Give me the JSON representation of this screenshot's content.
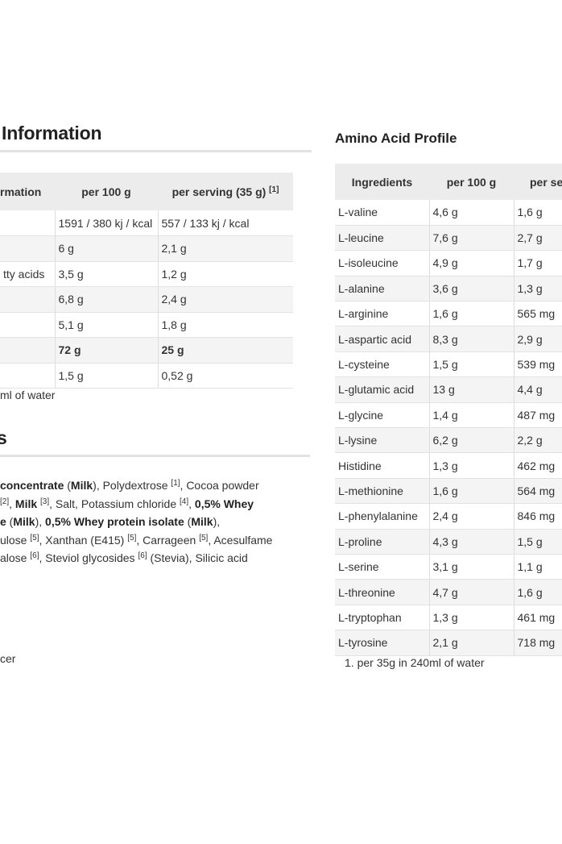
{
  "nutrition": {
    "title": "Information",
    "headers": [
      "rmation",
      "per 100 g",
      "per serving (35 g)"
    ],
    "header_sup": "[1]",
    "rows": [
      {
        "label": "",
        "per100": "1591 / 380 kj / kcal",
        "serving": "557 / 133 kj / kcal",
        "bold": false
      },
      {
        "label": "",
        "per100": "6 g",
        "serving": "2,1 g",
        "bold": false
      },
      {
        "label": "tty acids",
        "per100": "3,5 g",
        "serving": "1,2 g",
        "bold": false
      },
      {
        "label": "",
        "per100": "6,8 g",
        "serving": "2,4 g",
        "bold": false
      },
      {
        "label": "",
        "per100": "5,1 g",
        "serving": "1,8 g",
        "bold": false
      },
      {
        "label": "",
        "per100": "72 g",
        "serving": "25 g",
        "bold": true
      },
      {
        "label": "",
        "per100": "1,5 g",
        "serving": "0,52 g",
        "bold": false
      }
    ],
    "footnote": "ml of water"
  },
  "ingredients": {
    "title": "s",
    "lines": [
      [
        {
          "t": "concentrate",
          "b": true
        },
        {
          "t": " ("
        },
        {
          "t": "Milk",
          "b": true
        },
        {
          "t": "), Polydextrose "
        },
        {
          "t": "[1]",
          "s": true
        },
        {
          "t": ", Cocoa powder"
        }
      ],
      [
        {
          "t": "[2]",
          "s": true
        },
        {
          "t": ", "
        },
        {
          "t": "Milk",
          "b": true
        },
        {
          "t": " "
        },
        {
          "t": "[3]",
          "s": true
        },
        {
          "t": ", Salt, Potassium chloride "
        },
        {
          "t": "[4]",
          "s": true
        },
        {
          "t": ", "
        },
        {
          "t": "0,5% Whey",
          "b": true
        }
      ],
      [
        {
          "t": "e",
          "b": true
        },
        {
          "t": " ("
        },
        {
          "t": "Milk",
          "b": true
        },
        {
          "t": "), "
        },
        {
          "t": "0,5% Whey protein isolate",
          "b": true
        },
        {
          "t": " ("
        },
        {
          "t": "Milk",
          "b": true
        },
        {
          "t": "),"
        }
      ],
      [
        {
          "t": "ulose "
        },
        {
          "t": "[5]",
          "s": true
        },
        {
          "t": ", Xanthan (E415) "
        },
        {
          "t": "[5]",
          "s": true
        },
        {
          "t": ", Carrageen "
        },
        {
          "t": "[5]",
          "s": true
        },
        {
          "t": ", Acesulfame"
        }
      ],
      [
        {
          "t": "alose "
        },
        {
          "t": "[6]",
          "s": true
        },
        {
          "t": ", Steviol glycosides "
        },
        {
          "t": "[6]",
          "s": true
        },
        {
          "t": " (Stevia), Silicic acid"
        }
      ]
    ],
    "trailing_text": "cer"
  },
  "amino": {
    "title": "Amino Acid Profile",
    "headers": [
      "Ingredients",
      "per 100 g",
      "per se"
    ],
    "rows": [
      [
        "L-valine",
        "4,6 g",
        "1,6 g"
      ],
      [
        "L-leucine",
        "7,6 g",
        "2,7 g"
      ],
      [
        "L-isoleucine",
        "4,9 g",
        "1,7 g"
      ],
      [
        "L-alanine",
        "3,6 g",
        "1,3 g"
      ],
      [
        "L-arginine",
        "1,6 g",
        "565 mg"
      ],
      [
        "L-aspartic acid",
        "8,3 g",
        "2,9 g"
      ],
      [
        "L-cysteine",
        "1,5 g",
        "539 mg"
      ],
      [
        "L-glutamic acid",
        "13 g",
        "4,4 g"
      ],
      [
        "L-glycine",
        "1,4 g",
        "487 mg"
      ],
      [
        "L-lysine",
        "6,2 g",
        "2,2 g"
      ],
      [
        "Histidine",
        "1,3 g",
        "462 mg"
      ],
      [
        "L-methionine",
        "1,6 g",
        "564 mg"
      ],
      [
        "L-phenylalanine",
        "2,4 g",
        "846 mg"
      ],
      [
        "L-proline",
        "4,3 g",
        "1,5 g"
      ],
      [
        "L-serine",
        "3,1 g",
        "1,1 g"
      ],
      [
        "L-threonine",
        "4,7 g",
        "1,6 g"
      ],
      [
        "L-tryptophan",
        "1,3 g",
        "461 mg"
      ],
      [
        "L-tyrosine",
        "2,1 g",
        "718 mg"
      ]
    ],
    "footnote": "1. per 35g in 240ml of water"
  }
}
